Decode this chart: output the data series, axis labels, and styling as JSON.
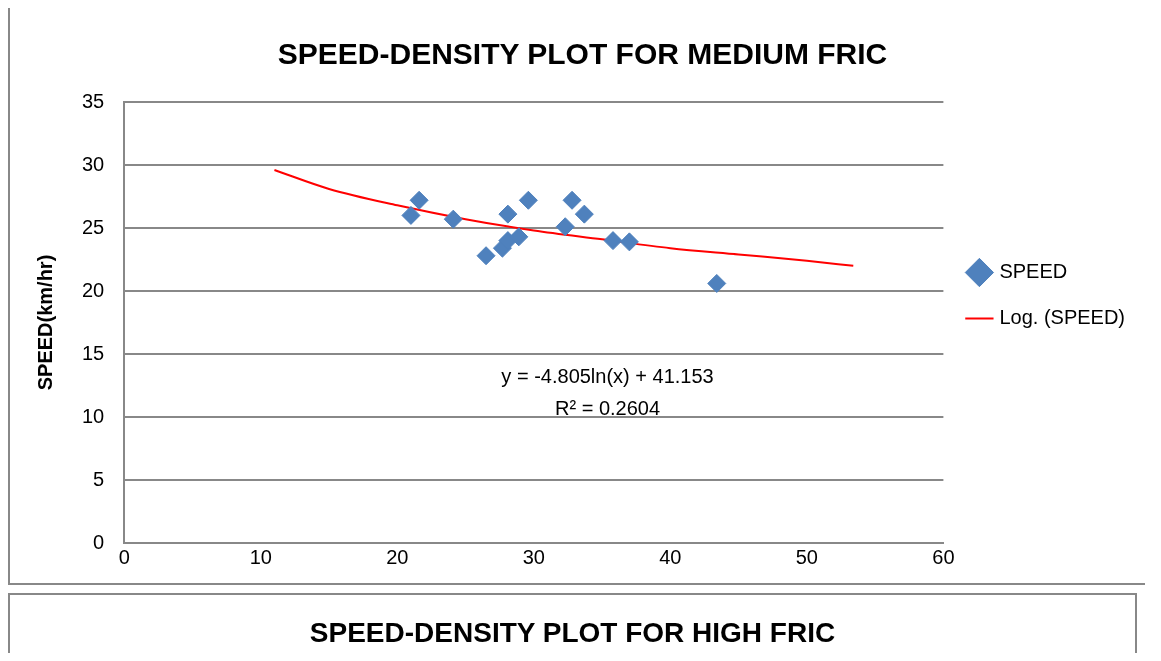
{
  "chart_data": [
    {
      "type": "scatter",
      "title": "SPEED-DENSITY PLOT FOR MEDIUM FRIC",
      "ylabel": "SPEED(km/hr)",
      "xlim": [
        0,
        60
      ],
      "xticks": [
        0,
        10,
        20,
        30,
        40,
        50,
        60
      ],
      "ylim": [
        0,
        35
      ],
      "yticks": [
        0,
        5,
        10,
        15,
        20,
        25,
        30,
        35
      ],
      "grid": "y",
      "legend": "right",
      "annotations": [
        "y = -4.805ln(x) + 41.153",
        "R² = 0.2604"
      ],
      "series": [
        {
          "name": "SPEED",
          "type": "scatter",
          "color": "#4f81bd",
          "marker": "diamond",
          "x": [
            21.0,
            21.6,
            24.1,
            26.5,
            27.7,
            28.1,
            28.1,
            28.9,
            29.6,
            32.3,
            32.8,
            33.7,
            35.8,
            37.0,
            43.4
          ],
          "values": [
            26.0,
            27.2,
            25.7,
            22.8,
            23.4,
            24.0,
            26.1,
            24.3,
            27.2,
            25.1,
            27.2,
            26.1,
            24.0,
            23.9,
            20.6
          ]
        },
        {
          "name": "Log. (SPEED)",
          "type": "line",
          "color": "#ff0000",
          "marker": "none",
          "x": [
            11,
            15,
            20,
            25,
            30,
            35,
            40,
            45,
            50,
            53.4
          ],
          "values": [
            29.6,
            28.1,
            26.8,
            25.7,
            24.8,
            24.1,
            23.4,
            22.9,
            22.4,
            22.0
          ]
        }
      ]
    },
    {
      "type": "other",
      "title": "SPEED-DENSITY PLOT FOR HIGH FRIC"
    }
  ]
}
